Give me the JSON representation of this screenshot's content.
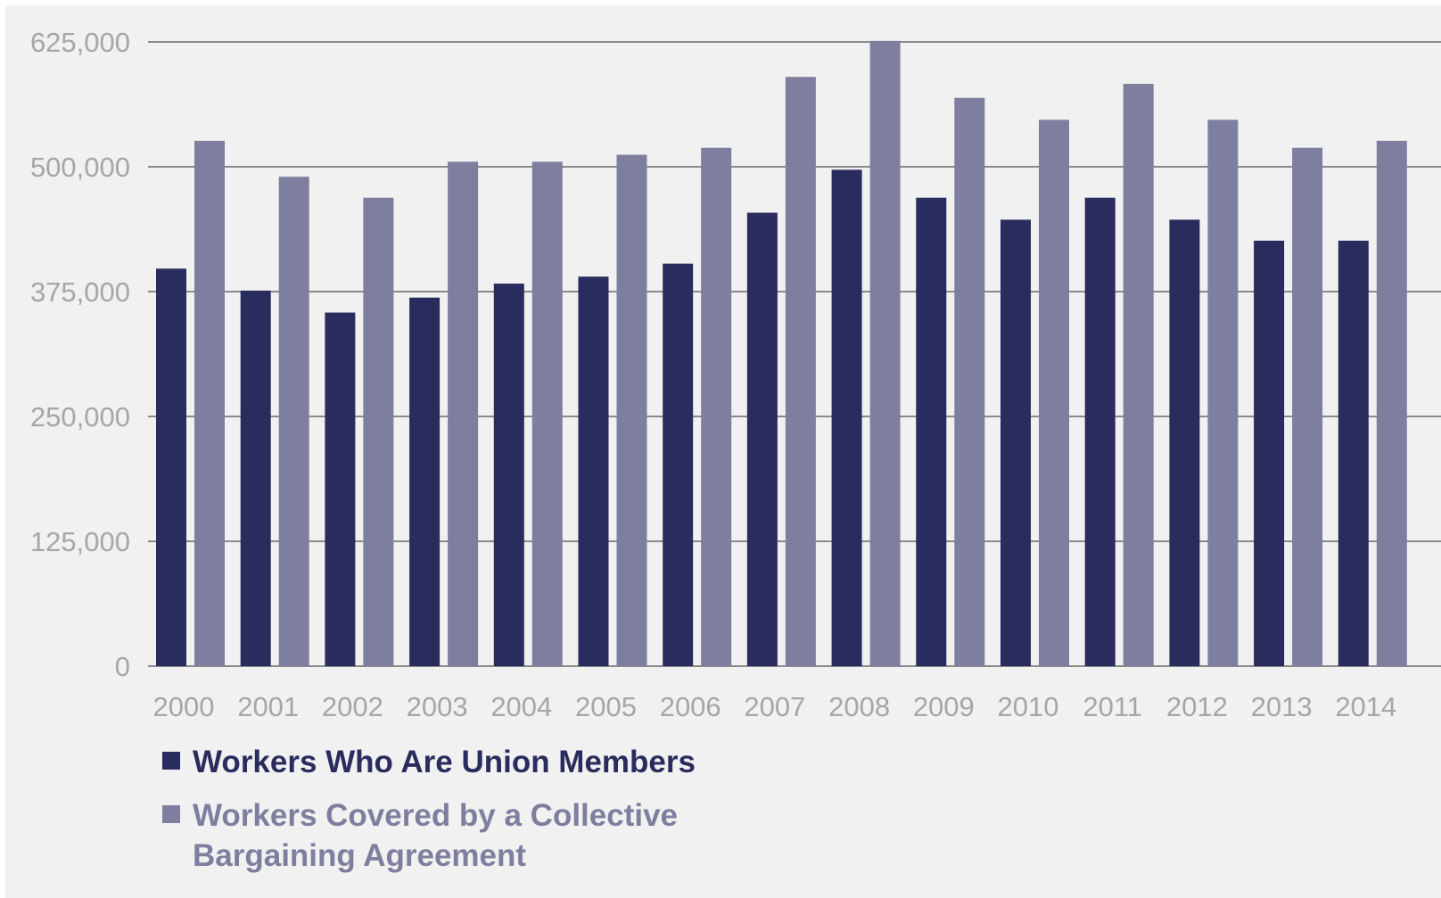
{
  "chart_data": {
    "type": "bar",
    "categories": [
      "2000",
      "2001",
      "2002",
      "2003",
      "2004",
      "2005",
      "2006",
      "2007",
      "2008",
      "2009",
      "2010",
      "2011",
      "2012",
      "2013",
      "2014"
    ],
    "series": [
      {
        "name": "Workers Who Are Union Members",
        "color": "#2a2c5e",
        "values": [
          398000,
          376000,
          354000,
          369000,
          383000,
          390000,
          403000,
          454000,
          497000,
          469000,
          447000,
          469000,
          447000,
          426000,
          426000
        ]
      },
      {
        "name": "Workers Covered by a Collective Bargaining Agreement",
        "color": "#7e7f9e",
        "values": [
          526000,
          490000,
          469000,
          505000,
          505000,
          512000,
          519000,
          590000,
          626000,
          569000,
          547000,
          583000,
          547000,
          519000,
          526000
        ]
      }
    ],
    "y_ticks": [
      "0",
      "125,000",
      "250,000",
      "375,000",
      "500,000",
      "625,000"
    ],
    "ylim": [
      0,
      625000
    ],
    "grid": true,
    "legend_position": "bottom-left",
    "gridline_color": "#8a8a8a",
    "tick_label_color": "#a6a6a6",
    "background_color": "#f1f1f1"
  }
}
